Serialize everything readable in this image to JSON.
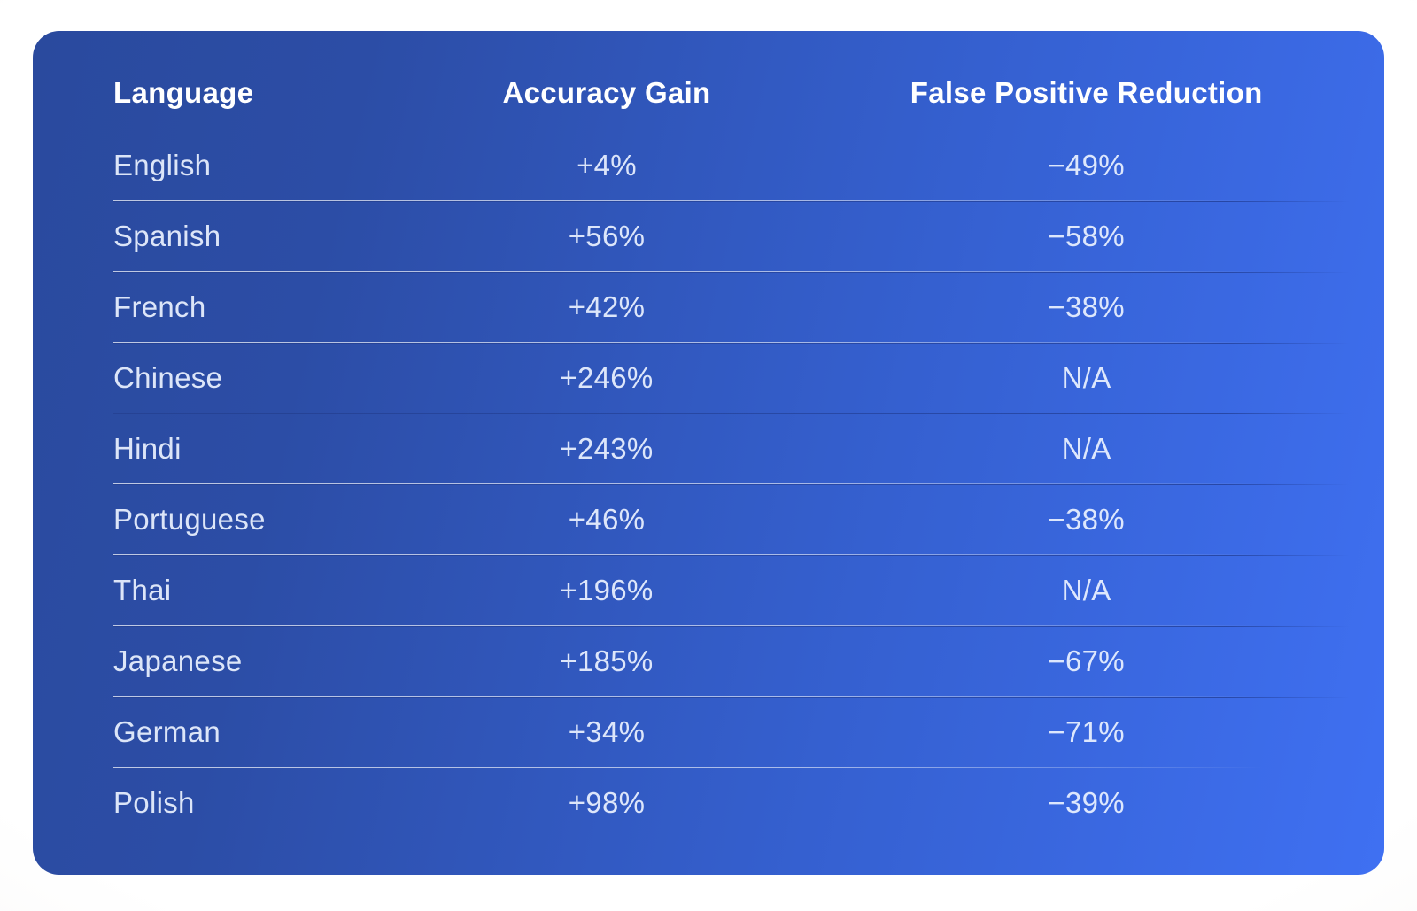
{
  "colors": {
    "card_gradient_start": "#2a4a9e",
    "card_gradient_end": "#3f70f2",
    "page_background": "#ffffff",
    "header_text": "#ffffff",
    "row_text": "#ebf2ff"
  },
  "table": {
    "columns": [
      "Language",
      "Accuracy Gain",
      "False Positive Reduction"
    ],
    "rows": [
      {
        "language": "English",
        "accuracy_gain": "+4%",
        "false_positive_reduction": "−49%"
      },
      {
        "language": "Spanish",
        "accuracy_gain": "+56%",
        "false_positive_reduction": "−58%"
      },
      {
        "language": "French",
        "accuracy_gain": "+42%",
        "false_positive_reduction": "−38%"
      },
      {
        "language": "Chinese",
        "accuracy_gain": "+246%",
        "false_positive_reduction": "N/A"
      },
      {
        "language": "Hindi",
        "accuracy_gain": "+243%",
        "false_positive_reduction": "N/A"
      },
      {
        "language": "Portuguese",
        "accuracy_gain": "+46%",
        "false_positive_reduction": "−38%"
      },
      {
        "language": "Thai",
        "accuracy_gain": "+196%",
        "false_positive_reduction": "N/A"
      },
      {
        "language": "Japanese",
        "accuracy_gain": "+185%",
        "false_positive_reduction": "−67%"
      },
      {
        "language": "German",
        "accuracy_gain": "+34%",
        "false_positive_reduction": "−71%"
      },
      {
        "language": "Polish",
        "accuracy_gain": "+98%",
        "false_positive_reduction": "−39%"
      }
    ]
  },
  "chart_data": {
    "type": "table",
    "title": "",
    "columns": [
      "Language",
      "Accuracy Gain",
      "False Positive Reduction"
    ],
    "categories": [
      "English",
      "Spanish",
      "French",
      "Chinese",
      "Hindi",
      "Portuguese",
      "Thai",
      "Japanese",
      "German",
      "Polish"
    ],
    "series": [
      {
        "name": "Accuracy Gain",
        "values": [
          "+4%",
          "+56%",
          "+42%",
          "+246%",
          "+243%",
          "+46%",
          "+196%",
          "+185%",
          "+34%",
          "+98%"
        ],
        "values_numeric": [
          4,
          56,
          42,
          246,
          243,
          46,
          196,
          185,
          34,
          98
        ]
      },
      {
        "name": "False Positive Reduction",
        "values": [
          "−49%",
          "−58%",
          "−38%",
          "N/A",
          "N/A",
          "−38%",
          "N/A",
          "−67%",
          "−71%",
          "−39%"
        ],
        "values_numeric": [
          -49,
          -58,
          -38,
          null,
          null,
          -38,
          null,
          -67,
          -71,
          -39
        ]
      }
    ]
  }
}
